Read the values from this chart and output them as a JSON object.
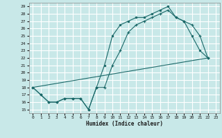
{
  "title": "",
  "xlabel": "Humidex (Indice chaleur)",
  "bg_color": "#c8e8e8",
  "grid_color": "#ffffff",
  "line_color": "#1a6868",
  "xlim": [
    -0.5,
    23.5
  ],
  "ylim": [
    14.5,
    29.5
  ],
  "yticks": [
    15,
    16,
    17,
    18,
    19,
    20,
    21,
    22,
    23,
    24,
    25,
    26,
    27,
    28,
    29
  ],
  "xticks": [
    0,
    1,
    2,
    3,
    4,
    5,
    6,
    7,
    8,
    9,
    10,
    11,
    12,
    13,
    14,
    15,
    16,
    17,
    18,
    19,
    20,
    21,
    22,
    23
  ],
  "line1_x": [
    0,
    1,
    2,
    3,
    4,
    5,
    6,
    7,
    8,
    9,
    10,
    11,
    12,
    13,
    14,
    15,
    16,
    17,
    18,
    19,
    20,
    21,
    22
  ],
  "line1_y": [
    18,
    17,
    16,
    16,
    16.5,
    16.5,
    16.5,
    15,
    18,
    21,
    25,
    26.5,
    27,
    27.5,
    27.5,
    28,
    28.5,
    29,
    27.5,
    27,
    25,
    23,
    22
  ],
  "line2_x": [
    0,
    22
  ],
  "line2_y": [
    18,
    22
  ],
  "line3_x": [
    0,
    1,
    2,
    3,
    4,
    5,
    6,
    7,
    8,
    9,
    10,
    11,
    12,
    13,
    14,
    15,
    16,
    17,
    18,
    19,
    20,
    21,
    22
  ],
  "line3_y": [
    18,
    17,
    16,
    16,
    16.5,
    16.5,
    16.5,
    15,
    18,
    18,
    21,
    23,
    25.5,
    26.5,
    27,
    27.5,
    28,
    28.5,
    27.5,
    27,
    26.5,
    25,
    22
  ]
}
